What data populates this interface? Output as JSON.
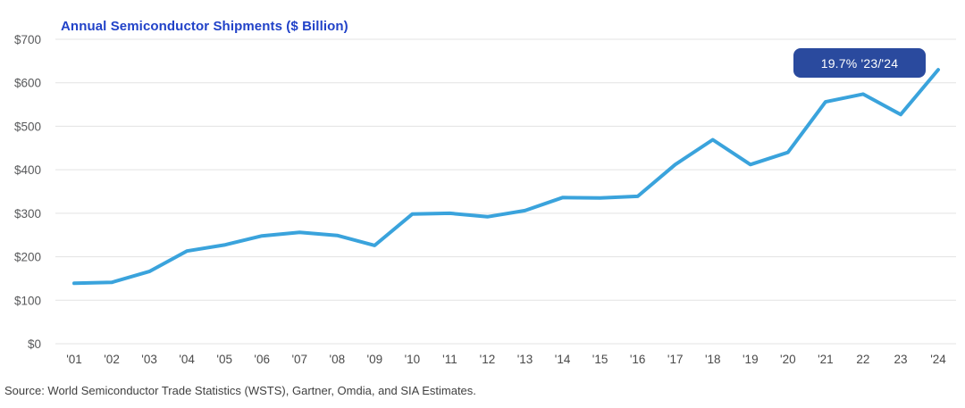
{
  "title": "Annual Semiconductor Shipments ($ Billion)",
  "badge": {
    "label": "19.7% '23/'24"
  },
  "source": "Source: World Semiconductor Trade Statistics (WSTS), Gartner, Omdia, and SIA Estimates.",
  "colors": {
    "title_text": "#2142c8",
    "badge_background": "#2a4a9e",
    "badge_text": "#ffffff",
    "line": "#3aa3dc",
    "gridline": "#e3e3e3",
    "y_tick_text": "#58595b",
    "x_tick_text": "#4a4a4a",
    "background": "#ffffff"
  },
  "chart_data": {
    "type": "line",
    "title": "Annual Semiconductor Shipments ($ Billion)",
    "xlabel": "",
    "ylabel": "",
    "categories": [
      "'01",
      "'02",
      "'03",
      "'04",
      "'05",
      "'06",
      "'07",
      "'08",
      "'09",
      "'10",
      "'11",
      "'12",
      "'13",
      "'14",
      "'15",
      "'16",
      "'17",
      "'18",
      "'19",
      "'20",
      "'21",
      "22",
      "23",
      "'24"
    ],
    "series": [
      {
        "name": "Annual semiconductor shipments ($B)",
        "values": [
          139,
          141,
          166,
          213,
          227,
          248,
          256,
          249,
          226,
          298,
          300,
          292,
          306,
          336,
          335,
          339,
          412,
          469,
          412,
          440,
          556,
          574,
          527,
          630
        ]
      }
    ],
    "ylim": [
      0,
      700
    ],
    "ytick_step": 100,
    "ytick_labels": [
      "$0",
      "$100",
      "$200",
      "$300",
      "$400",
      "$500",
      "$600",
      "$700"
    ],
    "grid": "horizontal",
    "legend": "none",
    "annotation": {
      "text": "19.7% '23/'24",
      "meaning": "growth from 2023 to 2024"
    }
  }
}
